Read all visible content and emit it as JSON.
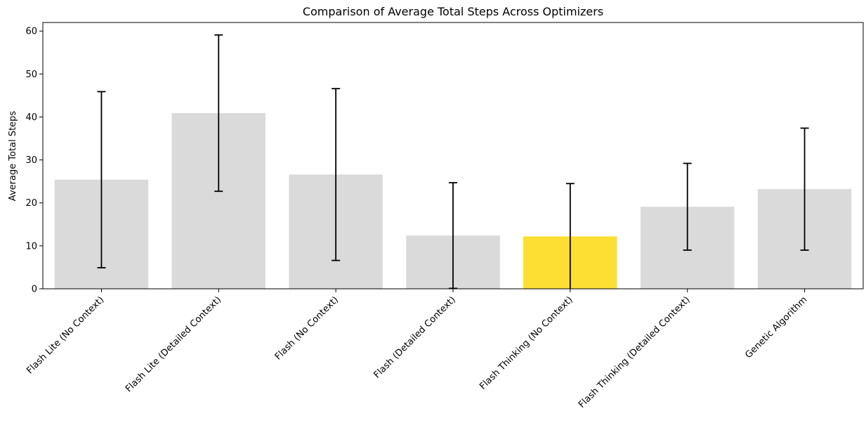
{
  "chart_data": {
    "type": "bar",
    "title": "Comparison of Average Total Steps Across Optimizers",
    "xlabel": "",
    "ylabel": "Average Total Steps",
    "ylim": [
      0,
      62
    ],
    "yticks": [
      0,
      10,
      20,
      30,
      40,
      50,
      60
    ],
    "grid": false,
    "categories": [
      "Flash Lite (No Context)",
      "Flash Lite (Detailed Context)",
      "Flash (No Context)",
      "Flash (Detailed Context)",
      "Flash Thinking (No Context)",
      "Flash Thinking (Detailed Context)",
      "Genetic Algorithm"
    ],
    "values": [
      25.4,
      40.9,
      26.6,
      12.4,
      12.2,
      19.1,
      23.2
    ],
    "error": [
      20.5,
      18.2,
      20.0,
      12.3,
      12.3,
      10.1,
      14.2
    ],
    "highlight_index": 4,
    "colors": {
      "bar": "#dadada",
      "highlight": "#fdde33",
      "error_bar": "#000000",
      "axis": "#000000"
    }
  }
}
